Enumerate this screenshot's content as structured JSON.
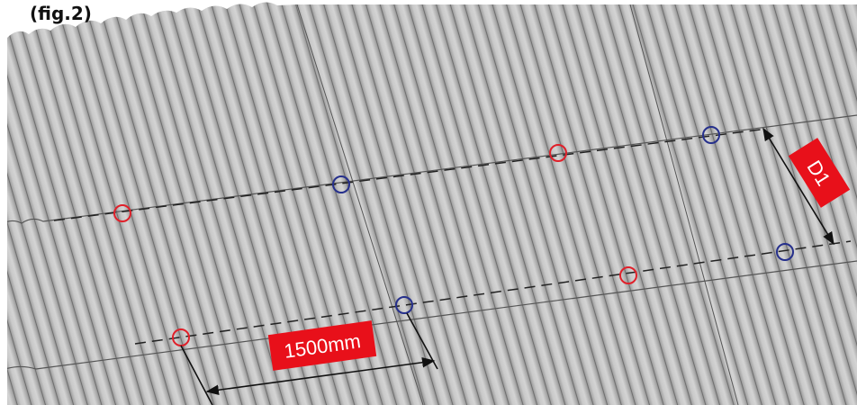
{
  "figure_label": "(fig.2)",
  "dimensions": {
    "spacing": "1500mm",
    "distance": "D1"
  }
}
